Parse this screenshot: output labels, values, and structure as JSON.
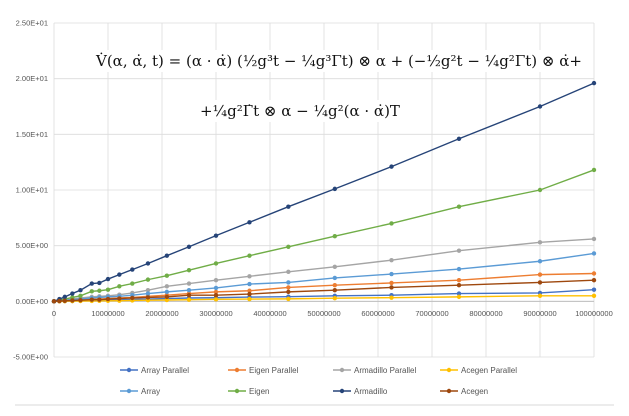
{
  "chart_data": {
    "type": "line",
    "title": "",
    "annotation": {
      "equation_line1": "V̇(α, α̇, t) = (α · α̇) (½g³t − ¼g³Γt) ⊗ α + (−½g²t − ¼g²Γt) ⊗ α̇+",
      "equation_line2": "+¼g²Γ̇t ⊗ α − ¼g²(α · α̇)T"
    },
    "xlabel": "",
    "ylabel": "",
    "xlim": [
      0,
      100000000
    ],
    "ylim": [
      -5,
      25
    ],
    "grid": true,
    "legend_position": "bottom",
    "x_ticks": [
      "0",
      "10000000",
      "20000000",
      "30000000",
      "40000000",
      "50000000",
      "60000000",
      "70000000",
      "80000000",
      "90000000",
      "100000000"
    ],
    "y_ticks": [
      "-5.00E+00",
      "0.00E+00",
      "5.00E+00",
      "1.00E+01",
      "1.50E+01",
      "2.00E+01",
      "2.50E+01"
    ],
    "x": [
      0,
      1000000,
      2000000,
      3400000,
      4900000,
      7000000,
      8400000,
      10000000,
      12100000,
      14500000,
      17400000,
      20900000,
      25000000,
      30000000,
      36200000,
      43400000,
      52000000,
      62500000,
      75000000,
      90000000,
      100000000
    ],
    "series": [
      {
        "name": "Array Parallel",
        "color": "#4472C4",
        "values": [
          0,
          0.01,
          0.02,
          0.03,
          0.05,
          0.08,
          0.1,
          0.12,
          0.14,
          0.17,
          0.2,
          0.25,
          0.3,
          0.33,
          0.38,
          0.42,
          0.5,
          0.55,
          0.7,
          0.75,
          1.05
        ]
      },
      {
        "name": "Eigen Parallel",
        "color": "#ED7D31",
        "values": [
          0,
          0.02,
          0.05,
          0.1,
          0.15,
          0.2,
          0.2,
          0.25,
          0.3,
          0.35,
          0.45,
          0.55,
          0.7,
          0.85,
          0.95,
          1.25,
          1.45,
          1.65,
          1.9,
          2.4,
          2.5
        ]
      },
      {
        "name": "Armadillo Parallel",
        "color": "#A5A5A5",
        "values": [
          0,
          0.05,
          0.1,
          0.2,
          0.3,
          0.4,
          0.45,
          0.5,
          0.6,
          0.75,
          1.0,
          1.35,
          1.6,
          1.9,
          2.25,
          2.65,
          3.1,
          3.7,
          4.55,
          5.3,
          5.6
        ]
      },
      {
        "name": "Acegen Parallel",
        "color": "#FFC000",
        "values": [
          0,
          0,
          0.01,
          0.02,
          0.03,
          0.04,
          0.05,
          0.05,
          0.06,
          0.08,
          0.1,
          0.12,
          0.15,
          0.18,
          0.2,
          0.22,
          0.28,
          0.33,
          0.4,
          0.5,
          0.5
        ]
      },
      {
        "name": "Array",
        "color": "#5B9BD5",
        "values": [
          0,
          0.05,
          0.1,
          0.15,
          0.2,
          0.3,
          0.35,
          0.4,
          0.45,
          0.55,
          0.7,
          0.85,
          1.0,
          1.2,
          1.55,
          1.7,
          2.1,
          2.45,
          2.9,
          3.6,
          4.3
        ]
      },
      {
        "name": "Eigen",
        "color": "#70AD47",
        "values": [
          0,
          0.1,
          0.2,
          0.35,
          0.5,
          0.9,
          0.95,
          1.05,
          1.35,
          1.6,
          1.95,
          2.3,
          2.8,
          3.4,
          4.1,
          4.9,
          5.85,
          7.0,
          8.5,
          10.0,
          11.8
        ]
      },
      {
        "name": "Armadillo",
        "color": "#264478",
        "values": [
          0,
          0.2,
          0.4,
          0.7,
          1.0,
          1.6,
          1.65,
          2.0,
          2.4,
          2.85,
          3.4,
          4.1,
          4.9,
          5.9,
          7.1,
          8.5,
          10.1,
          12.1,
          14.6,
          17.5,
          19.6
        ]
      },
      {
        "name": "Acegen",
        "color": "#9E480E",
        "values": [
          0,
          0.02,
          0.05,
          0.08,
          0.1,
          0.15,
          0.15,
          0.2,
          0.25,
          0.3,
          0.35,
          0.4,
          0.55,
          0.55,
          0.65,
          0.85,
          1.0,
          1.25,
          1.45,
          1.7,
          1.9
        ]
      }
    ]
  }
}
